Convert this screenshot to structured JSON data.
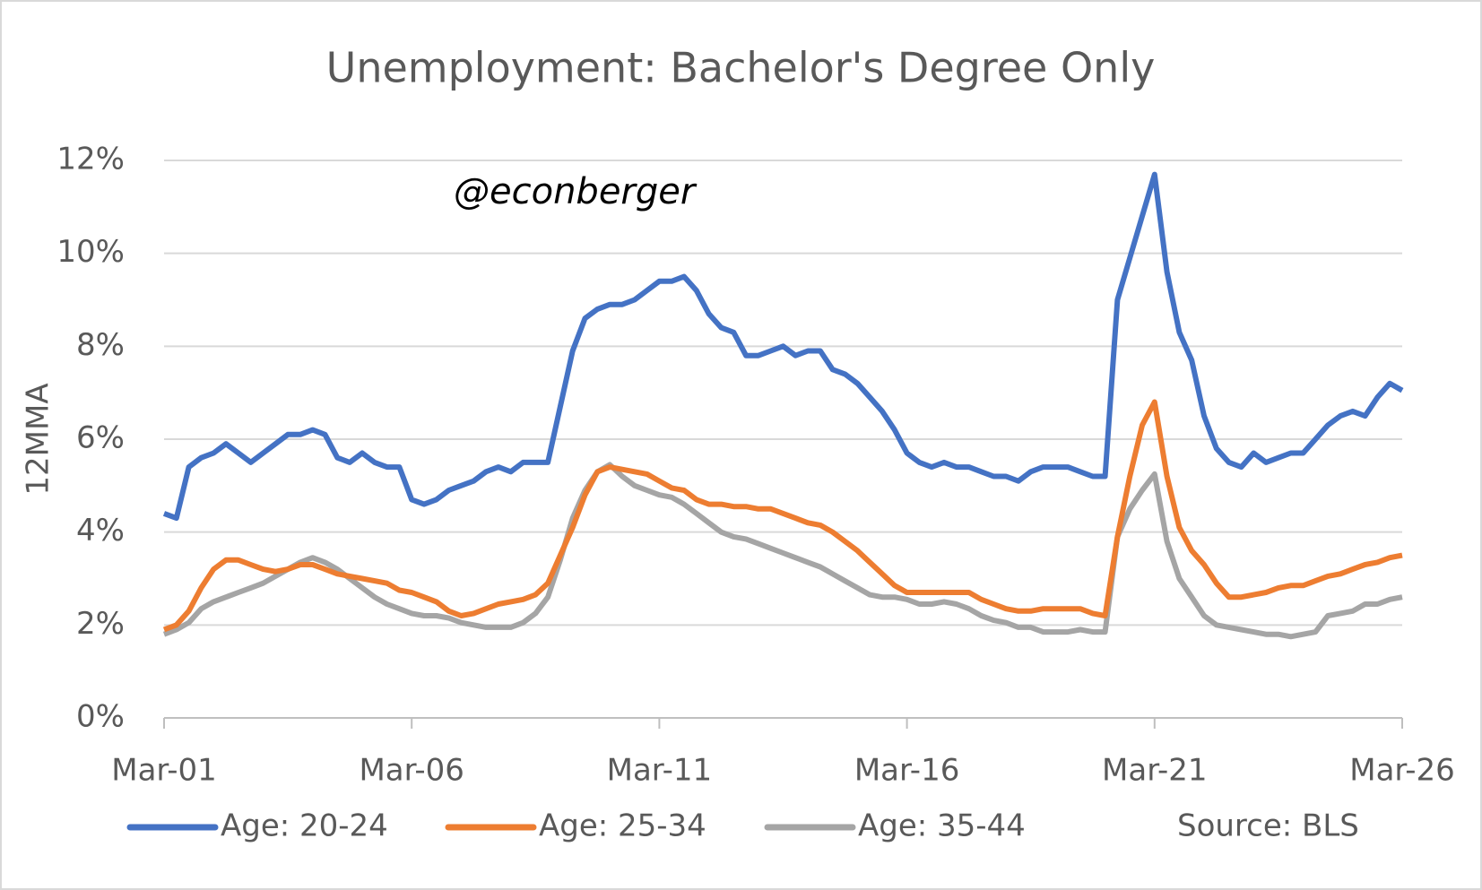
{
  "chart_data": {
    "type": "line",
    "title": "Unemployment: Bachelor's Degree Only",
    "y_label": "12MMA",
    "annotation": "@econberger",
    "source": "Source: BLS",
    "legend": "bottom",
    "grid": true,
    "ylim": [
      0,
      12
    ],
    "yticks": [
      {
        "value": 0,
        "label": "0%"
      },
      {
        "value": 2,
        "label": "2%"
      },
      {
        "value": 4,
        "label": "4%"
      },
      {
        "value": 6,
        "label": "6%"
      },
      {
        "value": 8,
        "label": "8%"
      },
      {
        "value": 10,
        "label": "10%"
      },
      {
        "value": 12,
        "label": "12%"
      }
    ],
    "categories": [
      "Mar-01",
      null,
      null,
      null,
      null,
      null,
      null,
      null,
      null,
      null,
      null,
      null,
      null,
      null,
      null,
      null,
      null,
      null,
      null,
      null,
      "Mar-06",
      null,
      null,
      null,
      null,
      null,
      null,
      null,
      null,
      null,
      null,
      null,
      null,
      null,
      null,
      null,
      null,
      null,
      null,
      null,
      "Mar-11",
      null,
      null,
      null,
      null,
      null,
      null,
      null,
      null,
      null,
      null,
      null,
      null,
      null,
      null,
      null,
      null,
      null,
      null,
      null,
      "Mar-16",
      null,
      null,
      null,
      null,
      null,
      null,
      null,
      null,
      null,
      null,
      null,
      null,
      null,
      null,
      null,
      null,
      null,
      null,
      null,
      "Mar-21",
      null,
      null,
      null,
      null,
      null,
      null,
      null,
      null,
      null,
      null,
      null,
      null,
      null,
      null,
      null,
      null,
      null,
      null,
      null,
      "Mar-26"
    ],
    "series": [
      {
        "name": "Age: 20-24",
        "color": "#4472c4",
        "values": [
          4.4,
          4.3,
          5.4,
          5.6,
          5.7,
          5.9,
          5.7,
          5.5,
          5.7,
          5.9,
          6.1,
          6.1,
          6.2,
          6.1,
          5.6,
          5.5,
          5.7,
          5.5,
          5.4,
          5.4,
          4.7,
          4.6,
          4.7,
          4.9,
          5.0,
          5.1,
          5.3,
          5.4,
          5.3,
          5.5,
          5.5,
          5.5,
          6.7,
          7.9,
          8.6,
          8.8,
          8.9,
          8.9,
          9.0,
          9.2,
          9.4,
          9.4,
          9.5,
          9.2,
          8.7,
          8.4,
          8.3,
          7.8,
          7.8,
          7.9,
          8.0,
          7.8,
          7.9,
          7.9,
          7.5,
          7.4,
          7.2,
          6.9,
          6.6,
          6.2,
          5.7,
          5.5,
          5.4,
          5.5,
          5.4,
          5.4,
          5.3,
          5.2,
          5.2,
          5.1,
          5.3,
          5.4,
          5.4,
          5.4,
          5.3,
          5.2,
          5.2,
          9.0,
          9.9,
          10.8,
          11.7,
          9.6,
          8.3,
          7.7,
          6.5,
          5.8,
          5.5,
          5.4,
          5.7,
          5.5,
          5.6,
          5.7,
          5.7,
          6.0,
          6.3,
          6.5,
          6.6,
          6.5,
          6.9,
          7.2,
          7.05
        ]
      },
      {
        "name": "Age: 25-34",
        "color": "#ed7d31",
        "values": [
          1.9,
          2.0,
          2.3,
          2.8,
          3.2,
          3.4,
          3.4,
          3.3,
          3.2,
          3.15,
          3.2,
          3.3,
          3.3,
          3.2,
          3.1,
          3.05,
          3.0,
          2.95,
          2.9,
          2.75,
          2.7,
          2.6,
          2.5,
          2.3,
          2.2,
          2.25,
          2.35,
          2.45,
          2.5,
          2.55,
          2.65,
          2.9,
          3.5,
          4.1,
          4.8,
          5.3,
          5.4,
          5.35,
          5.3,
          5.25,
          5.1,
          4.95,
          4.9,
          4.7,
          4.6,
          4.6,
          4.55,
          4.55,
          4.5,
          4.5,
          4.4,
          4.3,
          4.2,
          4.15,
          4.0,
          3.8,
          3.6,
          3.35,
          3.1,
          2.85,
          2.7,
          2.7,
          2.7,
          2.7,
          2.7,
          2.7,
          2.55,
          2.45,
          2.35,
          2.3,
          2.3,
          2.35,
          2.35,
          2.35,
          2.35,
          2.25,
          2.2,
          3.9,
          5.2,
          6.3,
          6.8,
          5.2,
          4.1,
          3.6,
          3.3,
          2.9,
          2.6,
          2.6,
          2.65,
          2.7,
          2.8,
          2.85,
          2.85,
          2.95,
          3.05,
          3.1,
          3.2,
          3.3,
          3.35,
          3.45,
          3.5
        ]
      },
      {
        "name": "Age: 35-44",
        "color": "#a5a5a5",
        "values": [
          1.8,
          1.9,
          2.05,
          2.35,
          2.5,
          2.6,
          2.7,
          2.8,
          2.9,
          3.05,
          3.2,
          3.35,
          3.45,
          3.35,
          3.2,
          3.0,
          2.8,
          2.6,
          2.45,
          2.35,
          2.25,
          2.2,
          2.2,
          2.15,
          2.05,
          2.0,
          1.95,
          1.95,
          1.95,
          2.05,
          2.25,
          2.6,
          3.4,
          4.3,
          4.9,
          5.3,
          5.45,
          5.2,
          5.0,
          4.9,
          4.8,
          4.75,
          4.6,
          4.4,
          4.2,
          4.0,
          3.9,
          3.85,
          3.75,
          3.65,
          3.55,
          3.45,
          3.35,
          3.25,
          3.1,
          2.95,
          2.8,
          2.65,
          2.6,
          2.6,
          2.55,
          2.45,
          2.45,
          2.5,
          2.45,
          2.35,
          2.2,
          2.1,
          2.05,
          1.95,
          1.95,
          1.85,
          1.85,
          1.85,
          1.9,
          1.85,
          1.85,
          3.9,
          4.5,
          4.9,
          5.25,
          3.8,
          3.0,
          2.6,
          2.2,
          2.0,
          1.95,
          1.9,
          1.85,
          1.8,
          1.8,
          1.75,
          1.8,
          1.85,
          2.2,
          2.25,
          2.3,
          2.45,
          2.45,
          2.55,
          2.6
        ]
      }
    ]
  }
}
